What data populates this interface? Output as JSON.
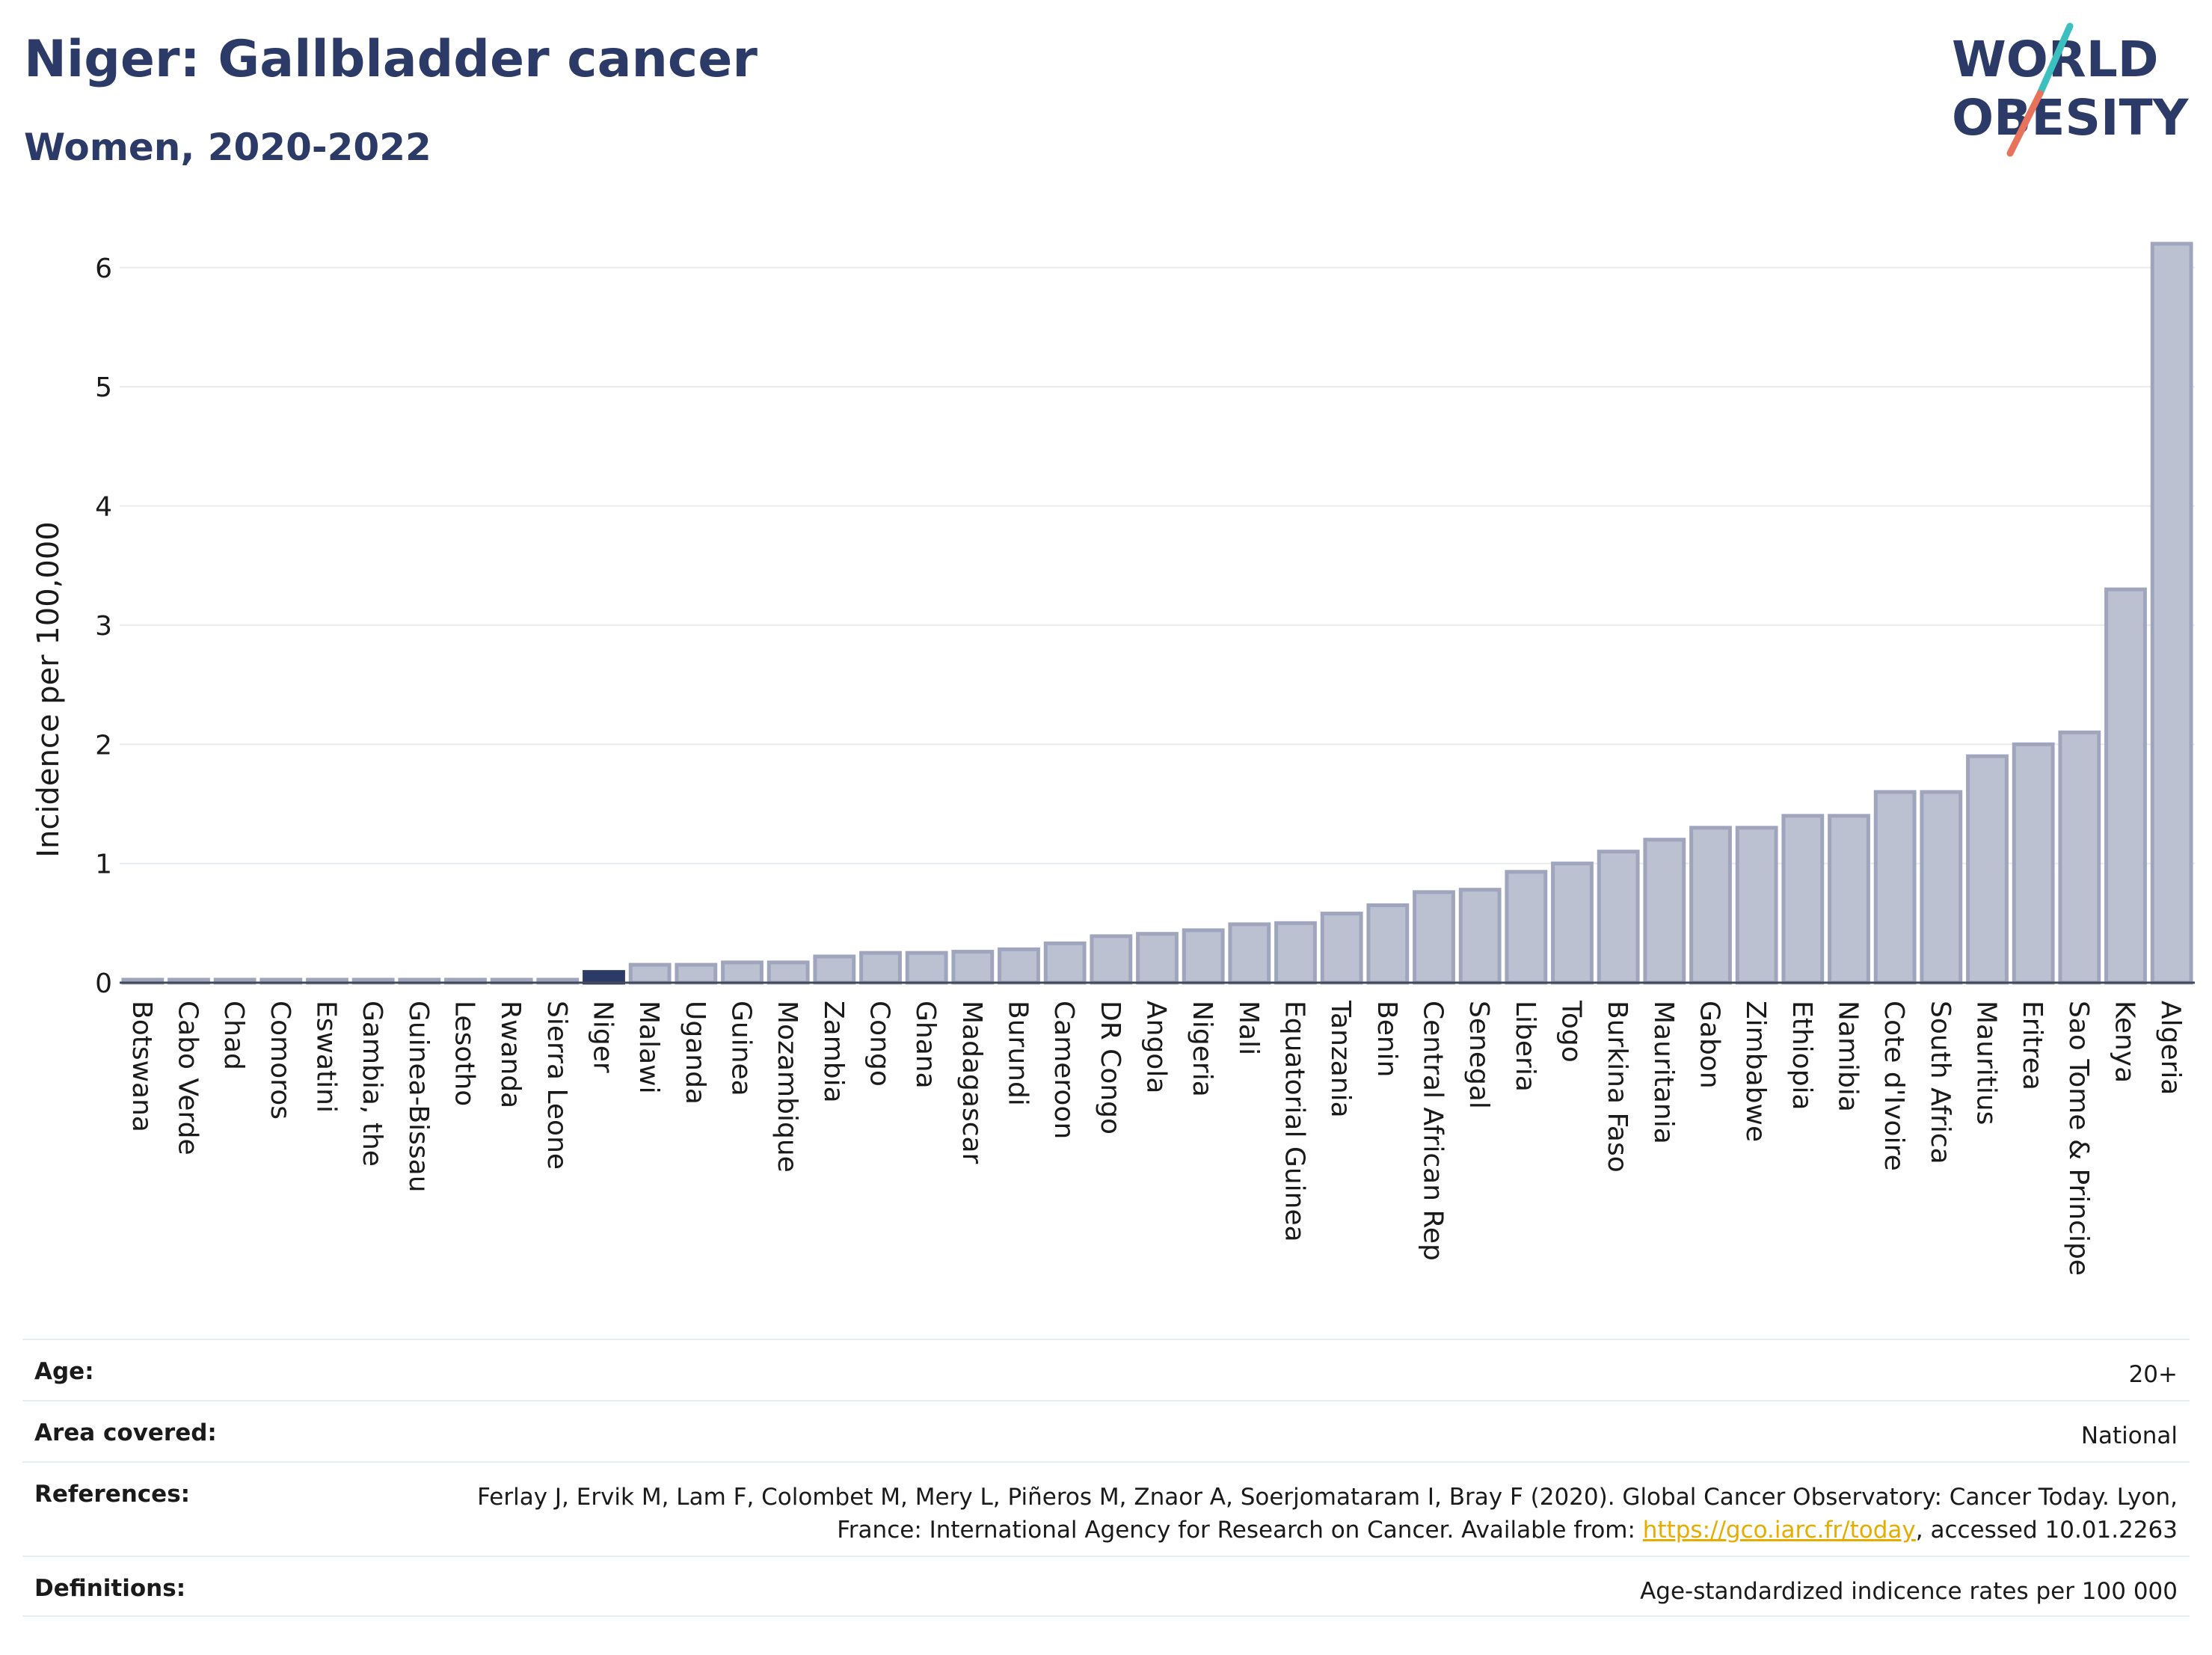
{
  "header": {
    "title": "Niger: Gallbladder cancer",
    "subtitle": "Women, 2020-2022"
  },
  "logo": {
    "line1": "WORLD",
    "line2": "OBESITY",
    "colors": {
      "text": "#2b3a67",
      "slash_top": "#3bbfbf",
      "slash_bottom": "#e8725c"
    }
  },
  "chart_data": {
    "type": "bar",
    "ylabel": "Incidence per 100,000",
    "xlabel": "",
    "ylim": [
      0,
      6.3
    ],
    "yticks": [
      0,
      1,
      2,
      3,
      4,
      5,
      6
    ],
    "grid": true,
    "highlight": "Niger",
    "colors": {
      "bar": "#bcc1d1",
      "bar_edge": "#9ea5bd",
      "highlight": "#2b3a67"
    },
    "categories": [
      "Botswana",
      "Cabo Verde",
      "Chad",
      "Comoros",
      "Eswatini",
      "Gambia, the",
      "Guinea-Bissau",
      "Lesotho",
      "Rwanda",
      "Sierra Leone",
      "Niger",
      "Malawi",
      "Uganda",
      "Guinea",
      "Mozambique",
      "Zambia",
      "Congo",
      "Ghana",
      "Madagascar",
      "Burundi",
      "Cameroon",
      "DR Congo",
      "Angola",
      "Nigeria",
      "Mali",
      "Equatorial Guinea",
      "Tanzania",
      "Benin",
      "Central African Rep",
      "Senegal",
      "Liberia",
      "Togo",
      "Burkina Faso",
      "Mauritania",
      "Gabon",
      "Zimbabwe",
      "Ethiopia",
      "Namibia",
      "Cote d'Ivoire",
      "South Africa",
      "Mauritius",
      "Eritrea",
      "Sao Tome & Principe",
      "Kenya",
      "Algeria"
    ],
    "values": [
      0.02,
      0.02,
      0.02,
      0.02,
      0.02,
      0.02,
      0.02,
      0.02,
      0.02,
      0.02,
      0.09,
      0.15,
      0.15,
      0.17,
      0.17,
      0.22,
      0.25,
      0.25,
      0.26,
      0.28,
      0.33,
      0.39,
      0.41,
      0.44,
      0.49,
      0.5,
      0.58,
      0.65,
      0.76,
      0.78,
      0.93,
      1.0,
      1.1,
      1.2,
      1.3,
      1.3,
      1.4,
      1.4,
      1.6,
      1.6,
      1.9,
      2.0,
      2.1,
      3.3,
      6.2
    ]
  },
  "meta": {
    "age_label": "Age:",
    "age_value": "20+",
    "area_label": "Area covered:",
    "area_value": "National",
    "references_label": "References:",
    "references_text_1": "Ferlay J, Ervik M, Lam F, Colombet M, Mery L, Piñeros M, Znaor A, Soerjomataram I, Bray F (2020). Global Cancer Observatory: Cancer Today. Lyon, France: International Agency for Research on Cancer. Available from: ",
    "references_link": "https://gco.iarc.fr/today",
    "references_text_2": ", accessed 10.01.2263",
    "definitions_label": "Definitions:",
    "definitions_value": "Age-standardized indicence rates per 100 000"
  }
}
